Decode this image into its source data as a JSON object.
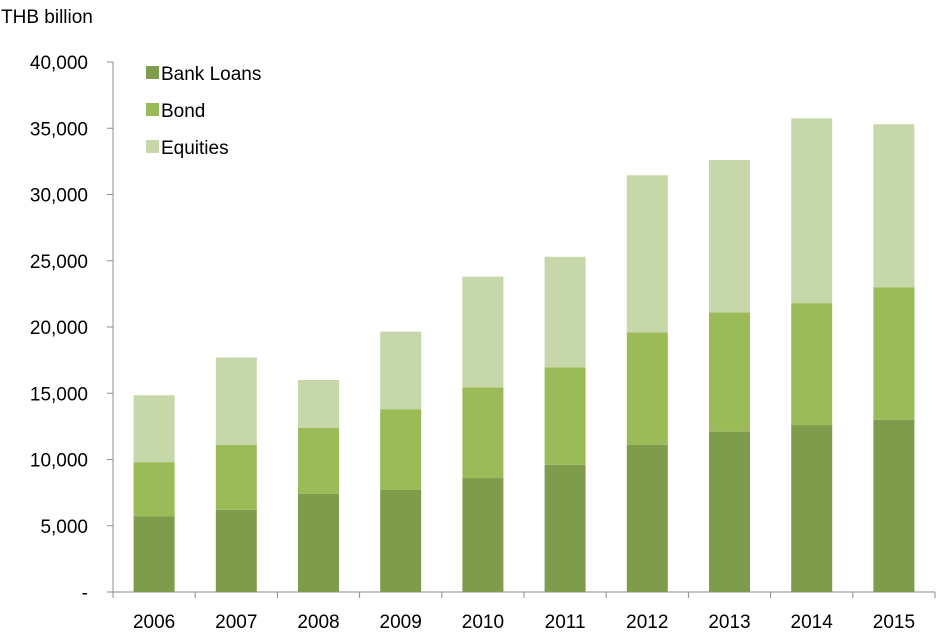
{
  "chart_data": {
    "type": "bar",
    "stacked": true,
    "unit_label": "THB billion",
    "categories": [
      "2006",
      "2007",
      "2008",
      "2009",
      "2010",
      "2011",
      "2012",
      "2013",
      "2014",
      "2015"
    ],
    "series": [
      {
        "name": "Bank Loans",
        "color": "#7f9b4c",
        "values": [
          5700,
          6200,
          7400,
          7700,
          8600,
          9600,
          11100,
          12100,
          12600,
          13000
        ]
      },
      {
        "name": "Bond",
        "color": "#9bbb59",
        "values": [
          4100,
          4900,
          5000,
          6100,
          6850,
          7350,
          8500,
          9000,
          9200,
          10000
        ]
      },
      {
        "name": "Equities",
        "color": "#c6d7a9",
        "values": [
          5050,
          6600,
          3600,
          5850,
          8350,
          8350,
          11850,
          11500,
          13950,
          12300
        ]
      }
    ],
    "ylim": [
      0,
      40000
    ],
    "yticks": [
      0,
      5000,
      10000,
      15000,
      20000,
      25000,
      30000,
      35000,
      40000
    ],
    "ytick_labels": [
      "-",
      "5,000",
      "10,000",
      "15,000",
      "20,000",
      "25,000",
      "30,000",
      "35,000",
      "40,000"
    ],
    "grid": false,
    "legend_position": "top-left"
  }
}
